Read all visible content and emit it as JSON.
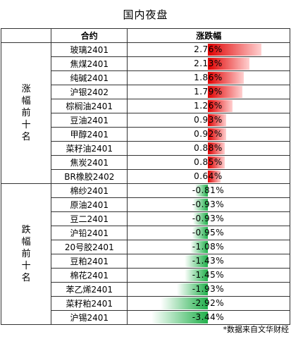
{
  "title": "国内夜盘",
  "header": {
    "contract": "合约",
    "change": "涨跌幅"
  },
  "footnote": "*数据来自文华财经",
  "chart_data": {
    "type": "bar",
    "title": "国内夜盘",
    "unit": "%",
    "groups": [
      {
        "label": "涨幅前十名",
        "rows": [
          {
            "name": "玻璃2401",
            "value": 2.76,
            "label": "2.76%"
          },
          {
            "name": "焦煤2401",
            "value": 2.13,
            "label": "2.13%"
          },
          {
            "name": "纯碱2401",
            "value": 1.86,
            "label": "1.86%"
          },
          {
            "name": "沪银2402",
            "value": 1.79,
            "label": "1.79%"
          },
          {
            "name": "棕榈油2401",
            "value": 1.26,
            "label": "1.26%"
          },
          {
            "name": "豆油2401",
            "value": 0.93,
            "label": "0.93%"
          },
          {
            "name": "甲醇2401",
            "value": 0.92,
            "label": "0.92%"
          },
          {
            "name": "菜籽油2401",
            "value": 0.88,
            "label": "0.88%"
          },
          {
            "name": "焦炭2401",
            "value": 0.85,
            "label": "0.85%"
          },
          {
            "name": "BR橡胶2402",
            "value": 0.64,
            "label": "0.64%"
          }
        ]
      },
      {
        "label": "跌幅前十名",
        "rows": [
          {
            "name": "棉纱2401",
            "value": -0.81,
            "label": "-0.81%"
          },
          {
            "name": "原油2401",
            "value": -0.93,
            "label": "-0.93%"
          },
          {
            "name": "豆二2401",
            "value": -0.93,
            "label": "-0.93%"
          },
          {
            "name": "沪铅2401",
            "value": -0.95,
            "label": "-0.95%"
          },
          {
            "name": "20号胶2401",
            "value": -1.08,
            "label": "-1.08%"
          },
          {
            "name": "豆粕2401",
            "value": -1.43,
            "label": "-1.43%"
          },
          {
            "name": "棉花2401",
            "value": -1.45,
            "label": "-1.45%"
          },
          {
            "name": "苯乙烯2401",
            "value": -1.93,
            "label": "-1.93%"
          },
          {
            "name": "菜籽粕2401",
            "value": -2.92,
            "label": "-2.92%"
          },
          {
            "name": "沪锡2401",
            "value": -3.44,
            "label": "-3.44%"
          }
        ]
      }
    ],
    "max_abs": 3.44,
    "colors": {
      "positive": "#e00000",
      "negative": "#21b04b"
    }
  }
}
